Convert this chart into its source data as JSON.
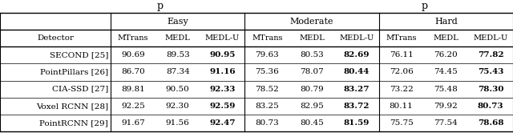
{
  "col_groups": [
    "Easy",
    "Moderate",
    "Hard"
  ],
  "sub_cols": [
    "MTrans",
    "MEDL",
    "MEDL-U"
  ],
  "row_header": "Detector",
  "rows": [
    "SECOND [25]",
    "PointPillars [26]",
    "CIA-SSD [27]",
    "Voxel RCNN [28]",
    "PointRCNN [29]"
  ],
  "data": [
    [
      90.69,
      89.53,
      90.95,
      79.63,
      80.53,
      82.69,
      76.11,
      76.2,
      77.82
    ],
    [
      86.7,
      87.34,
      91.16,
      75.36,
      78.07,
      80.44,
      72.06,
      74.45,
      75.43
    ],
    [
      89.81,
      90.5,
      92.33,
      78.52,
      80.79,
      83.27,
      73.22,
      75.48,
      78.3
    ],
    [
      92.25,
      92.3,
      92.59,
      83.25,
      82.95,
      83.72,
      80.11,
      79.92,
      80.73
    ],
    [
      91.67,
      91.56,
      92.47,
      80.73,
      80.45,
      81.59,
      75.75,
      77.54,
      78.68
    ]
  ],
  "bold_col_indices": [
    2,
    5,
    8
  ],
  "font_size": 7.5,
  "background_color": "#ffffff",
  "partial_title": "p     p",
  "partial_title_fontsize": 9
}
